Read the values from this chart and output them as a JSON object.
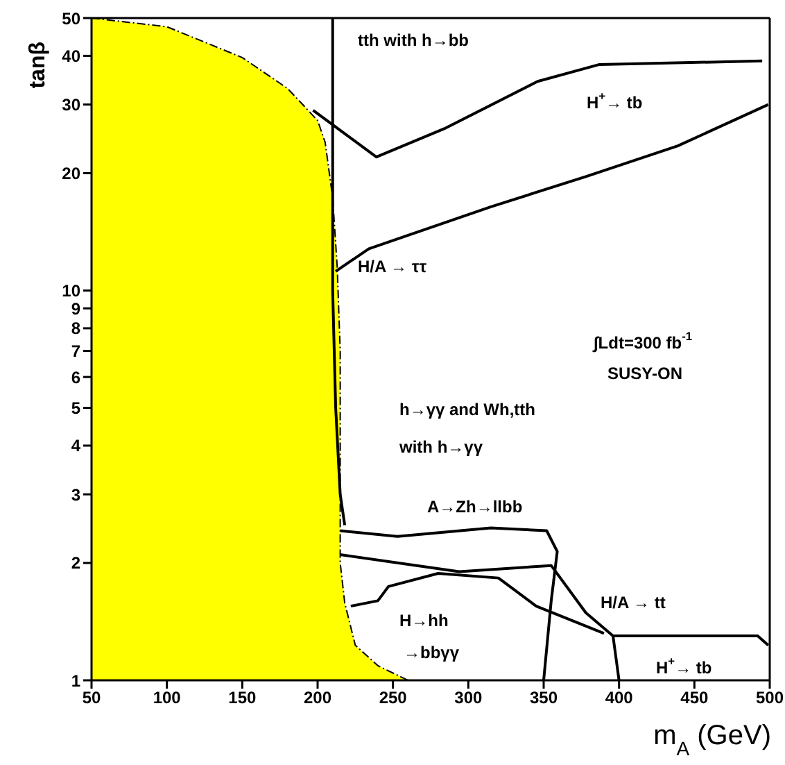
{
  "chart_data": {
    "type": "line",
    "xlabel": "m$_{A}$ (GeV)",
    "ylabel": "tanβ",
    "log": "y",
    "grid": false,
    "legend": false,
    "marker": "none",
    "line_style": "solid",
    "xlim": [
      50,
      500
    ],
    "xticks": [
      50,
      100,
      150,
      200,
      250,
      300,
      350,
      400,
      450,
      500
    ],
    "ylim": [
      1,
      50
    ],
    "yticks": [
      1,
      2,
      3,
      4,
      5,
      6,
      7,
      8,
      9,
      10,
      20,
      30,
      40,
      50
    ],
    "series": [
      {
        "type": "area",
        "color": "#ffff00",
        "x": [
          50,
          100,
          150,
          180,
          200,
          205,
          210,
          213,
          215,
          215,
          218,
          225,
          240,
          260
        ],
        "values": [
          50,
          47.5,
          39.6,
          33,
          27.3,
          24,
          17.3,
          11.5,
          7,
          2,
          1.58,
          1.23,
          1.09,
          1
        ]
      },
      {
        "color": "#000000",
        "x": [
          197,
          239,
          284,
          346,
          387,
          495
        ],
        "values": [
          29,
          22,
          26,
          34.4,
          38,
          38.8
        ]
      },
      {
        "color": "#000000",
        "x": [
          212,
          234,
          315,
          378,
          439,
          499
        ],
        "values": [
          11.2,
          12.8,
          16.4,
          19.6,
          23.5,
          30
        ]
      },
      {
        "color": "#000000",
        "x": [
          210,
          210,
          212,
          215,
          218
        ],
        "values": [
          50,
          10,
          5,
          3,
          2.5
        ]
      },
      {
        "color": "#000000",
        "x": [
          215,
          253,
          315,
          352,
          359,
          355,
          350
        ],
        "values": [
          2.42,
          2.34,
          2.46,
          2.42,
          2.14,
          1.6,
          1
        ]
      },
      {
        "color": "#000000",
        "x": [
          215,
          294,
          355,
          378,
          396,
          400
        ],
        "values": [
          2.1,
          1.9,
          1.97,
          1.49,
          1.3,
          1
        ]
      },
      {
        "color": "#000000",
        "x": [
          222,
          240,
          247,
          280,
          320,
          345,
          390
        ],
        "values": [
          1.55,
          1.6,
          1.74,
          1.88,
          1.83,
          1.55,
          1.32
        ]
      },
      {
        "color": "#000000",
        "x": [
          396,
          440,
          492,
          499
        ],
        "values": [
          1.3,
          1.3,
          1.3,
          1.23
        ]
      }
    ],
    "annotations": [
      "tth with h→bb",
      "H$^{+}$→ tb",
      "H/A → ττ",
      "∫Ldt=300 fb$^{-1}$",
      "SUSY-ON",
      "h→γγ and Wh,tth",
      "with h→γγ",
      "A→Zh→llbb",
      "H/A → tt",
      "H→hh",
      "→bbγγ",
      "H$^{+}$→ tb"
    ]
  }
}
